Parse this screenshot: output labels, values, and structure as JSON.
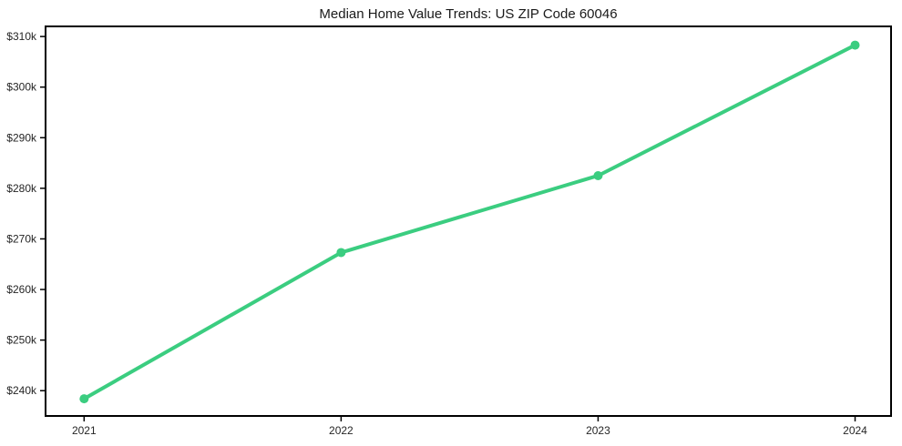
{
  "chart_data": {
    "type": "line",
    "title": "Median Home Value Trends: US ZIP Code 60046",
    "x": [
      2021,
      2022,
      2023,
      2024
    ],
    "x_tick_labels": [
      "2021",
      "2022",
      "2023",
      "2024"
    ],
    "series": [
      {
        "name": "Median Home Value",
        "values": [
          238400,
          267300,
          282500,
          308300
        ]
      }
    ],
    "y_ticks": [
      240000,
      250000,
      260000,
      270000,
      280000,
      290000,
      300000,
      310000
    ],
    "y_tick_labels": [
      "$240k",
      "$250k",
      "$260k",
      "$270k",
      "$280k",
      "$290k",
      "$300k",
      "$310k"
    ],
    "xlim": [
      2020.85,
      2024.14
    ],
    "ylim": [
      235000,
      312000
    ],
    "xlabel": "",
    "ylabel": "",
    "grid": false,
    "legend": "none",
    "line_color": "#3bcd80",
    "marker": "circle",
    "frame_color": "#000000",
    "tick_label_color": "#262626",
    "background_color": "#ffffff"
  }
}
